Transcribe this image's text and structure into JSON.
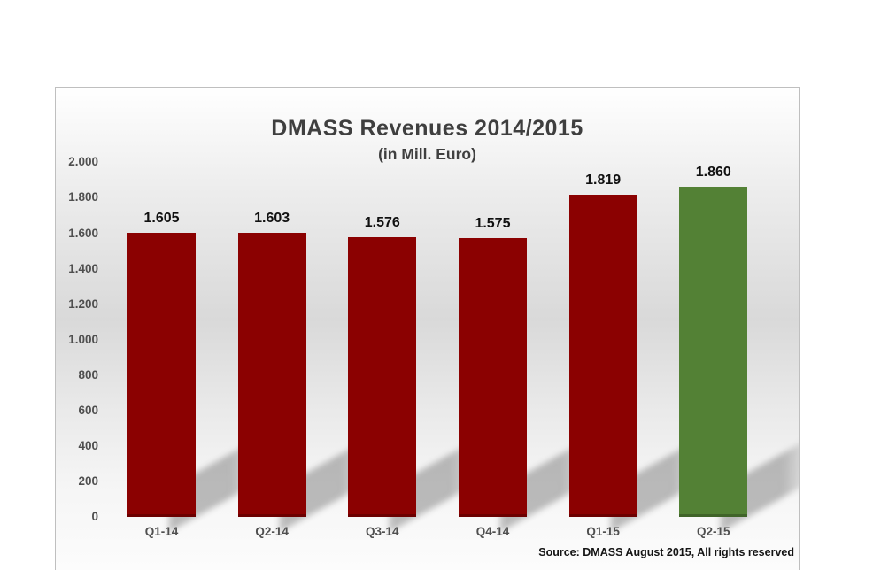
{
  "chart": {
    "title": "DMASS Revenues 2014/2015",
    "subtitle": "(in Mill. Euro)",
    "source_note": "Source: DMASS August 2015, All rights reserved"
  },
  "chart_data": {
    "type": "bar",
    "title": "DMASS Revenues 2014/2015",
    "subtitle": "(in Mill. Euro)",
    "xlabel": "",
    "ylabel": "",
    "categories": [
      "Q1-14",
      "Q2-14",
      "Q3-14",
      "Q4-14",
      "Q1-15",
      "Q2-15"
    ],
    "values": [
      1605,
      1603,
      1576,
      1575,
      1819,
      1860
    ],
    "value_labels": [
      "1.605",
      "1.603",
      "1.576",
      "1.575",
      "1.819",
      "1.860"
    ],
    "bar_colors": [
      "#8B0101",
      "#8B0101",
      "#8B0101",
      "#8B0101",
      "#8B0101",
      "#538135"
    ],
    "ylim": [
      0,
      2000
    ],
    "y_tick_values": [
      2000,
      1800,
      1600,
      1400,
      1200,
      1000,
      800,
      600,
      400,
      200,
      0
    ],
    "y_tick_labels": [
      "2.000",
      "1.800",
      "1.600",
      "1.400",
      "1.200",
      "1.000",
      "800",
      "600",
      "400",
      "200",
      "0"
    ],
    "grid": false,
    "legend": null,
    "number_format": "thousands-dot-separator",
    "source": "Source: DMASS August 2015, All rights reserved",
    "accent_colors": {
      "revenue_bar": "#8B0101",
      "highlight_bar": "#538135",
      "shadow": "#6e6e6e",
      "title_text": "#3f3f3f",
      "axis_text": "#4f4f4f"
    }
  }
}
